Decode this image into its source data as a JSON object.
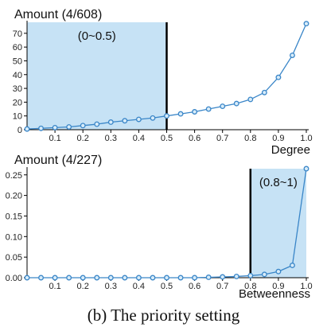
{
  "chart_data": [
    {
      "type": "line",
      "ylabel": "Amount (4/608)",
      "xlabel": "Degree",
      "xlim": [
        0,
        1.0
      ],
      "ylim": [
        0,
        78
      ],
      "x_ticks": [
        "0.1",
        "0.2",
        "0.3",
        "0.4",
        "0.5",
        "0.6",
        "0.7",
        "0.8",
        "0.9",
        "1.0"
      ],
      "y_ticks": [
        "0",
        "10",
        "20",
        "30",
        "40",
        "50",
        "60",
        "70"
      ],
      "x": [
        0,
        0.05,
        0.1,
        0.15,
        0.2,
        0.25,
        0.3,
        0.35,
        0.4,
        0.45,
        0.5,
        0.55,
        0.6,
        0.65,
        0.7,
        0.75,
        0.8,
        0.85,
        0.9,
        0.95,
        1.0
      ],
      "values": [
        0.5,
        1,
        1.5,
        2,
        3,
        4,
        5.5,
        6.5,
        7.5,
        8.5,
        10,
        11.5,
        13,
        15,
        17,
        19,
        22,
        27,
        38,
        54,
        77
      ],
      "highlight": {
        "from": 0,
        "to": 0.5,
        "label": "(0~0.5)"
      },
      "color": "#3a86c8",
      "highlight_color": "#c6e2f5"
    },
    {
      "type": "line",
      "ylabel": "Amount (4/227)",
      "xlabel": "Betweenness",
      "xlim": [
        0,
        1.0
      ],
      "ylim": [
        0,
        0.265
      ],
      "x_ticks": [
        "0.1",
        "0.2",
        "0.3",
        "0.4",
        "0.5",
        "0.6",
        "0.7",
        "0.8",
        "0.9",
        "1.0"
      ],
      "y_ticks": [
        "0.00",
        "0.05",
        "0.10",
        "0.15",
        "0.20",
        "0.25"
      ],
      "x": [
        0,
        0.05,
        0.1,
        0.15,
        0.2,
        0.25,
        0.3,
        0.35,
        0.4,
        0.45,
        0.5,
        0.55,
        0.6,
        0.65,
        0.7,
        0.75,
        0.8,
        0.85,
        0.9,
        0.95,
        1.0
      ],
      "values": [
        0,
        0,
        0,
        0,
        0,
        0,
        0,
        0,
        0,
        0,
        0,
        0,
        0,
        0.001,
        0.002,
        0.003,
        0.005,
        0.008,
        0.015,
        0.03,
        0.265
      ],
      "highlight": {
        "from": 0.8,
        "to": 1.0,
        "label": "(0.8~1)"
      },
      "color": "#3a86c8",
      "highlight_color": "#c6e2f5"
    }
  ],
  "caption": "(b) The priority setting"
}
